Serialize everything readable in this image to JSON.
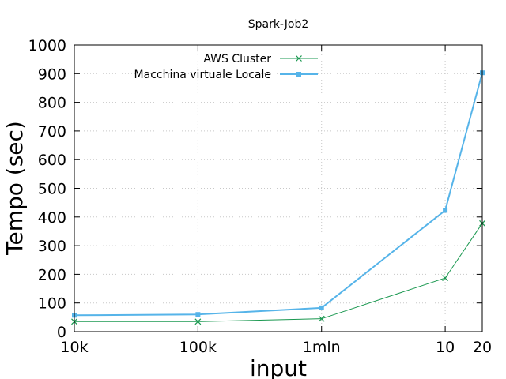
{
  "chart_data": {
    "type": "line",
    "title": "Spark-Job2",
    "xlabel": "input",
    "ylabel": "Tempo (sec)",
    "categories": [
      "10k",
      "100k",
      "1mln",
      "10",
      "20"
    ],
    "x": [
      0,
      1,
      2,
      3,
      3.3
    ],
    "ylim": [
      0,
      1000
    ],
    "yticks": [
      0,
      100,
      200,
      300,
      400,
      500,
      600,
      700,
      800,
      900,
      1000
    ],
    "grid": true,
    "legend_position": "top-right",
    "series": [
      {
        "name": "AWS Cluster",
        "values": [
          35,
          35,
          45,
          187,
          378
        ],
        "color": "#1a9850",
        "marker": "x-cross"
      },
      {
        "name": "Macchina virtuale Locale",
        "values": [
          57,
          60,
          83,
          423,
          903
        ],
        "color": "#56b4e9",
        "marker": "square"
      }
    ]
  }
}
